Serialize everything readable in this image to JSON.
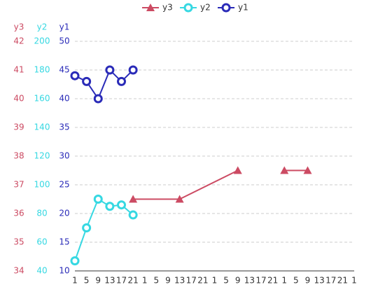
{
  "chart_data": {
    "type": "line",
    "xlim": [
      1,
      97
    ],
    "xticks": [
      1,
      5,
      9,
      13,
      17,
      21,
      {
        "value": 25,
        "label": "1"
      },
      {
        "value": 29,
        "label": "5"
      },
      {
        "value": 33,
        "label": "9"
      },
      {
        "value": 37,
        "label": "13"
      },
      {
        "value": 41,
        "label": "17"
      },
      {
        "value": 45,
        "label": "21"
      },
      {
        "value": 49,
        "label": "1"
      },
      {
        "value": 53,
        "label": "5"
      },
      {
        "value": 57,
        "label": "9"
      },
      {
        "value": 61,
        "label": "13"
      },
      {
        "value": 65,
        "label": "17"
      },
      {
        "value": 69,
        "label": "21"
      },
      {
        "value": 73,
        "label": "1"
      },
      {
        "value": 77,
        "label": "5"
      },
      {
        "value": 81,
        "label": "9"
      },
      {
        "value": 85,
        "label": "13"
      },
      {
        "value": 89,
        "label": "17"
      },
      {
        "value": 93,
        "label": "21"
      },
      {
        "value": 97,
        "label": "1"
      }
    ],
    "y_label": "y1",
    "ylim": [
      10,
      50
    ],
    "yticks": [
      10,
      15,
      20,
      25,
      30,
      35,
      40,
      45,
      50
    ],
    "y2_label": "y2",
    "y2lim": [
      40,
      200
    ],
    "y2ticks": [
      40,
      60,
      80,
      100,
      120,
      140,
      160,
      180,
      200
    ],
    "y3_label": "y3",
    "y3lim": [
      34,
      42
    ],
    "y3ticks": [
      34,
      35,
      36,
      37,
      38,
      39,
      40,
      41,
      42
    ],
    "grid": true,
    "series": [
      {
        "name": "y3",
        "color": "#cc4b63",
        "marker": "triangle",
        "axis": "y3",
        "x": [
          21,
          37,
          57,
          65,
          73,
          81
        ],
        "values": [
          36.5,
          36.5,
          37.5,
          null,
          37.5,
          37.5
        ]
      },
      {
        "name": "y2",
        "color": "#36d8e2",
        "marker": "circle",
        "axis": "y2",
        "x": [
          1,
          5,
          9,
          13,
          17,
          21
        ],
        "values": [
          47,
          70,
          90,
          85,
          86,
          79
        ]
      },
      {
        "name": "y1",
        "color": "#2a2bb8",
        "marker": "circle",
        "axis": "y",
        "x": [
          1,
          5,
          9,
          13,
          17,
          21
        ],
        "values": [
          44,
          43,
          40,
          45,
          43,
          45
        ]
      }
    ]
  }
}
